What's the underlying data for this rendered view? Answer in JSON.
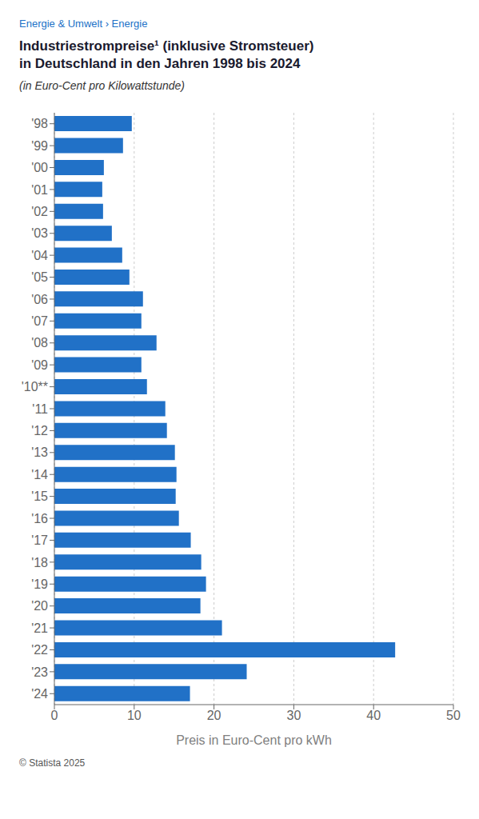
{
  "chart_data": {
    "type": "bar",
    "orientation": "horizontal",
    "title": [
      "Industriestrompreise¹ (inklusive Stromsteuer)",
      "in Deutschland in den Jahren 1998 bis 2024"
    ],
    "subtitle": "(in Euro-Cent pro Kilowattstunde)",
    "annotations": [
      "Energie & Umwelt › Energie",
      "© Statista 2025"
    ],
    "xlabel": "Preis in Euro-Cent pro kWh",
    "categories": [
      "'98",
      "'99",
      "'00",
      "'01",
      "'02",
      "'03",
      "'04",
      "'05",
      "'06",
      "'07",
      "'08",
      "'09",
      "'10**",
      "'11",
      "'12",
      "'13",
      "'14",
      "'15",
      "'16",
      "'17",
      "'18",
      "'19",
      "'20",
      "'21",
      "'22",
      "'23",
      "'24"
    ],
    "values": [
      9.7,
      8.6,
      6.2,
      6.0,
      6.1,
      7.2,
      8.5,
      9.4,
      11.1,
      10.9,
      12.8,
      10.9,
      11.6,
      13.9,
      14.1,
      15.1,
      15.3,
      15.2,
      15.6,
      17.09,
      18.4,
      19.0,
      18.3,
      21.0,
      42.7,
      24.1,
      16.99
    ],
    "color": "#2171C7",
    "xlim": [
      0,
      50
    ],
    "xticks": [
      0,
      10,
      20,
      30,
      40,
      50
    ],
    "grid": true
  }
}
